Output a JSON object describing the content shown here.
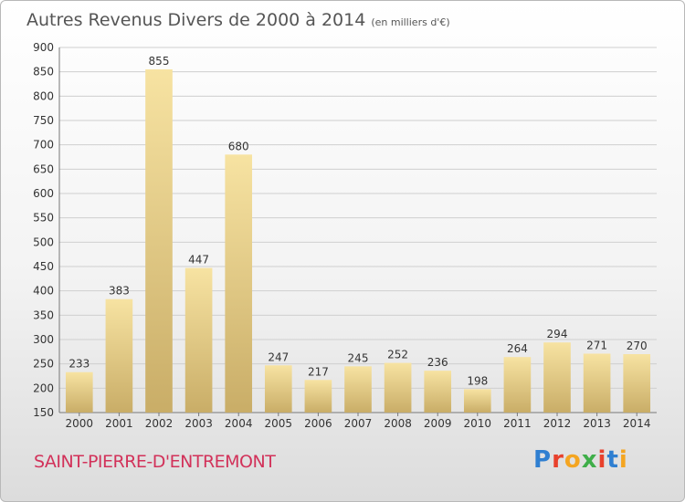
{
  "header": {
    "title": "Autres Revenus Divers de 2000 à 2014",
    "subtitle": "(en milliers d'€)"
  },
  "footer": {
    "commune": "SAINT-PIERRE-D'ENTREMONT",
    "logo_text": "Proxiti"
  },
  "colors": {
    "bar_light": "#f7e3a2",
    "bar_dark": "#c9ad67",
    "grid": "#cfcfcf",
    "commune": "#d2325a"
  },
  "chart_data": {
    "type": "bar",
    "title": "Autres Revenus Divers de 2000 à 2014",
    "subtitle": "(en milliers d'€)",
    "categories": [
      "2000",
      "2001",
      "2002",
      "2003",
      "2004",
      "2005",
      "2006",
      "2007",
      "2008",
      "2009",
      "2010",
      "2011",
      "2012",
      "2013",
      "2014"
    ],
    "values": [
      233,
      383,
      855,
      447,
      680,
      247,
      217,
      245,
      252,
      236,
      198,
      264,
      294,
      271,
      270
    ],
    "yticks": [
      150,
      200,
      250,
      300,
      350,
      400,
      450,
      500,
      550,
      600,
      650,
      700,
      750,
      800,
      850,
      900
    ],
    "ylim": [
      150,
      900
    ],
    "grid": true,
    "xlabel": "",
    "ylabel": ""
  }
}
